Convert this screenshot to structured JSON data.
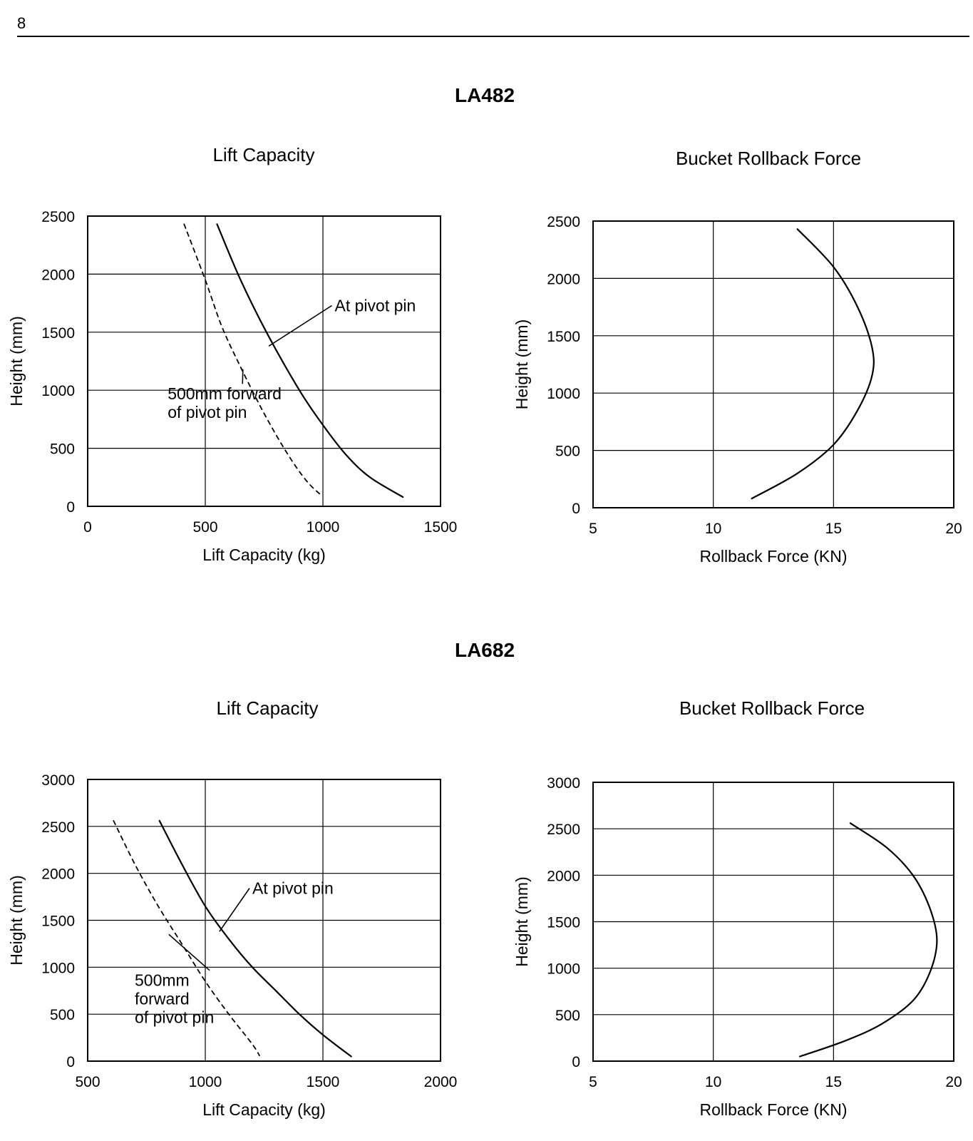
{
  "page": {
    "number": "8"
  },
  "sections": [
    {
      "title": "LA482"
    },
    {
      "title": "LA682"
    }
  ],
  "chart_data": [
    {
      "id": "la482-lift",
      "type": "line",
      "title": "Lift Capacity",
      "xlabel": "Lift Capacity (kg)",
      "ylabel": "Height (mm)",
      "xlim": [
        0,
        1500
      ],
      "ylim": [
        0,
        2500
      ],
      "xticks": [
        0,
        500,
        1000,
        1500
      ],
      "yticks": [
        0,
        500,
        1000,
        1500,
        2000,
        2500
      ],
      "grid": true,
      "series": [
        {
          "name": "At pivot pin",
          "style": "solid",
          "x": [
            550,
            650,
            760,
            900,
            1000,
            1100,
            1200,
            1340
          ],
          "y": [
            2430,
            1950,
            1500,
            1000,
            700,
            440,
            250,
            80
          ]
        },
        {
          "name": "500mm forward of pivot pin",
          "style": "dashed",
          "x": [
            410,
            500,
            570,
            650,
            750,
            850,
            930,
            990
          ],
          "y": [
            2430,
            1950,
            1550,
            1200,
            800,
            450,
            220,
            100
          ]
        }
      ],
      "annotations": [
        {
          "text": "At pivot pin",
          "series": 0,
          "at": [
            770,
            1380
          ],
          "label_at": [
            1050,
            1680
          ]
        },
        {
          "text": "500mm forward\nof pivot pin",
          "series": 1,
          "at": [
            660,
            1180
          ],
          "label_at": [
            340,
            920
          ]
        }
      ]
    },
    {
      "id": "la482-rollback",
      "type": "line",
      "title": "Bucket Rollback Force",
      "xlabel": "Rollback Force (KN)",
      "ylabel": "Height (mm)",
      "xlim": [
        5,
        20
      ],
      "ylim": [
        0,
        2500
      ],
      "xticks": [
        5,
        10,
        15,
        20
      ],
      "yticks": [
        0,
        500,
        1000,
        1500,
        2000,
        2500
      ],
      "grid": true,
      "series": [
        {
          "style": "solid",
          "x": [
            13.5,
            15.0,
            16.0,
            16.6,
            16.6,
            16.0,
            15.0,
            13.5,
            11.6
          ],
          "y": [
            2430,
            2100,
            1750,
            1400,
            1150,
            850,
            550,
            300,
            80
          ]
        }
      ]
    },
    {
      "id": "la682-lift",
      "type": "line",
      "title": "Lift Capacity",
      "xlabel": "Lift Capacity (kg)",
      "ylabel": "Height (mm)",
      "xlim": [
        500,
        2000
      ],
      "ylim": [
        0,
        3000
      ],
      "xticks": [
        500,
        1000,
        1500,
        2000
      ],
      "yticks": [
        0,
        500,
        1000,
        1500,
        2000,
        2500,
        3000
      ],
      "grid": true,
      "series": [
        {
          "name": "At pivot pin",
          "style": "solid",
          "x": [
            805,
            900,
            1000,
            1100,
            1200,
            1300,
            1400,
            1500,
            1620
          ],
          "y": [
            2560,
            2100,
            1650,
            1300,
            1000,
            750,
            500,
            280,
            50
          ]
        },
        {
          "name": "500mm forward of pivot pin",
          "style": "dashed",
          "x": [
            610,
            700,
            800,
            900,
            1000,
            1100,
            1200,
            1230
          ],
          "y": [
            2560,
            2100,
            1650,
            1250,
            850,
            500,
            180,
            60
          ]
        }
      ],
      "annotations": [
        {
          "text": "At pivot pin",
          "series": 0,
          "at": [
            1060,
            1380
          ],
          "label_at": [
            1200,
            1780
          ]
        },
        {
          "text": "500mm\nforward\nof pivot pin",
          "series": 1,
          "at": [
            845,
            1350
          ],
          "label_at": [
            700,
            800
          ]
        }
      ]
    },
    {
      "id": "la682-rollback",
      "type": "line",
      "title": "Bucket Rollback Force",
      "xlabel": "Rollback Force (KN)",
      "ylabel": "Height (mm)",
      "xlim": [
        5,
        20
      ],
      "ylim": [
        0,
        3000
      ],
      "xticks": [
        5,
        10,
        15,
        20
      ],
      "yticks": [
        0,
        500,
        1000,
        1500,
        2000,
        2500,
        3000
      ],
      "grid": true,
      "series": [
        {
          "style": "solid",
          "x": [
            15.7,
            17.2,
            18.3,
            19.0,
            19.3,
            19.0,
            18.3,
            17.0,
            15.5,
            13.6
          ],
          "y": [
            2560,
            2300,
            2000,
            1650,
            1300,
            950,
            650,
            400,
            220,
            50
          ]
        }
      ]
    }
  ]
}
